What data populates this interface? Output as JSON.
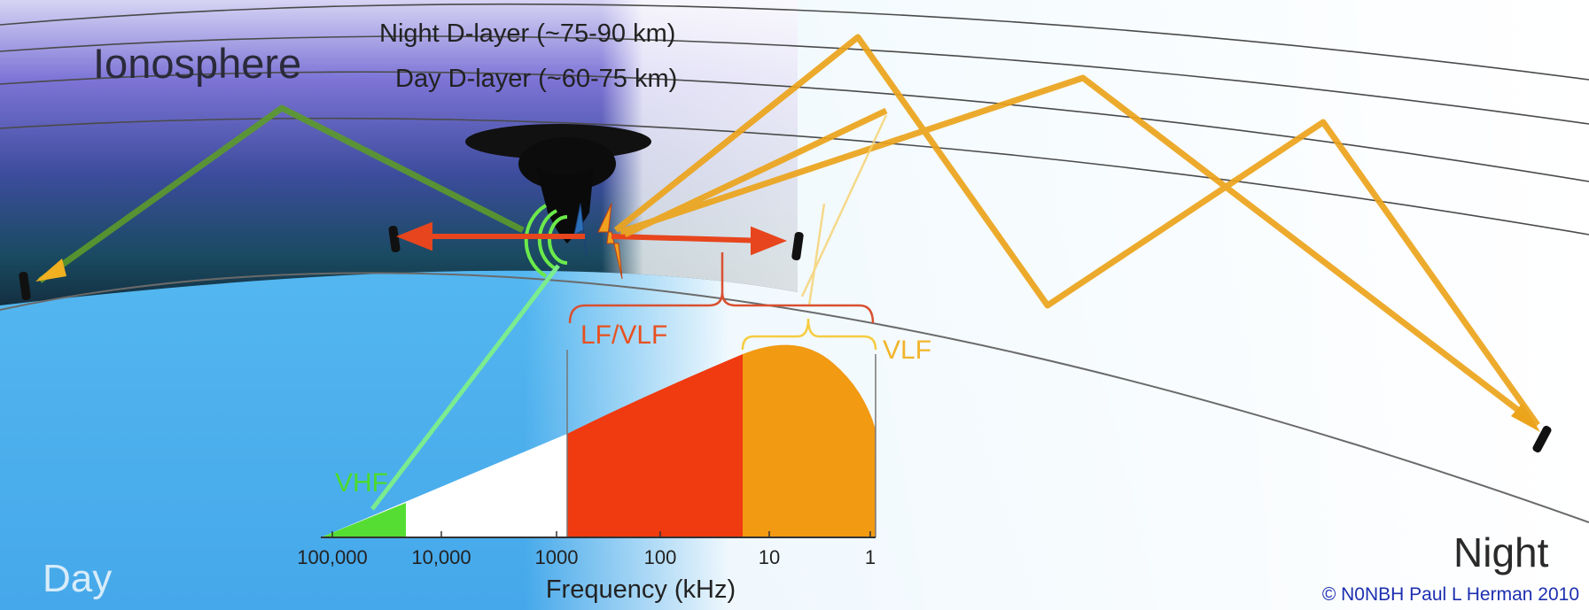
{
  "labels": {
    "ionosphere": "Ionosphere",
    "night_layer": "Night D-layer (~75-90 km)",
    "day_layer": "Day D-layer (~60-75 km)",
    "lf_vlf": "LF/VLF",
    "vlf": "VLF",
    "vhf": "VHF",
    "day": "Day",
    "night": "Night",
    "credit": "© N0NBH Paul L Herman 2010"
  },
  "spectrum": {
    "axis_title": "Frequency (kHz)",
    "ticks": [
      "100,000",
      "10,000",
      "1000",
      "100",
      "10",
      "1"
    ],
    "colors": {
      "vhf": "#55dd33",
      "lf_vlf": "#f03a10",
      "vlf": "#f19a12"
    }
  },
  "colors": {
    "sky": "#52b2f0",
    "night_bands": "#5a4fc4",
    "green_ray": "#5c9a2a",
    "orange_ray": "#eca41c",
    "red_ray": "#e7451d",
    "credit": "#1d2fb0"
  }
}
